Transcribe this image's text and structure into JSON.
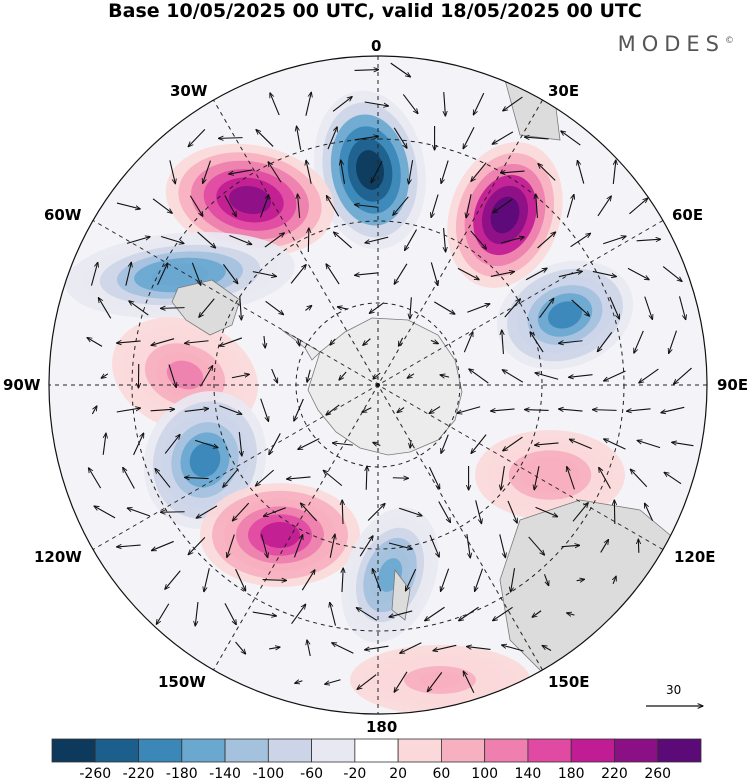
{
  "title": "Base 10/05/2025 00 UTC, valid 18/05/2025 00 UTC",
  "brand": "MODES",
  "brand_mark": "©",
  "longitude_labels": {
    "lon_0": "0",
    "lon_30e": "30E",
    "lon_60e": "60E",
    "lon_90e": "90E",
    "lon_120e": "120E",
    "lon_150e": "150E",
    "lon_180": "180",
    "lon_150w": "150W",
    "lon_120w": "120W",
    "lon_90w": "90W",
    "lon_60w": "60W",
    "lon_30w": "30W"
  },
  "reference_vector": {
    "label": "30",
    "icon": "arrow-right-icon"
  },
  "colorbar": {
    "colors": [
      "#0d3a5c",
      "#1d5f8c",
      "#3a87b8",
      "#6aa8d0",
      "#a4c1dd",
      "#ccd5e8",
      "#e8e8f2",
      "#ffffff",
      "#fbd9da",
      "#f7b0c0",
      "#ee7fae",
      "#e04aa2",
      "#c01c93",
      "#8b0f85",
      "#5b0a78"
    ],
    "labels": [
      "-260",
      "-220",
      "-180",
      "-140",
      "-100",
      "-60",
      "-20",
      "20",
      "60",
      "100",
      "140",
      "180",
      "220",
      "260"
    ]
  },
  "anomaly_centers": [
    {
      "sign": "negative",
      "strength": 280,
      "lon": 0
    },
    {
      "sign": "positive",
      "strength": 270,
      "lon": 30
    },
    {
      "sign": "positive",
      "strength": 250,
      "lon": -25
    },
    {
      "sign": "negative",
      "strength": 170,
      "lon": -55
    },
    {
      "sign": "negative",
      "strength": 190,
      "lon": 65
    },
    {
      "sign": "positive",
      "strength": 90,
      "lon": 110
    },
    {
      "sign": "positive",
      "strength": 100,
      "lon": -80
    },
    {
      "sign": "negative",
      "strength": 180,
      "lon": -110
    },
    {
      "sign": "positive",
      "strength": 190,
      "lon": -140
    },
    {
      "sign": "negative",
      "strength": 160,
      "lon": 175
    },
    {
      "sign": "positive",
      "strength": 80,
      "lon": 160
    }
  ]
}
